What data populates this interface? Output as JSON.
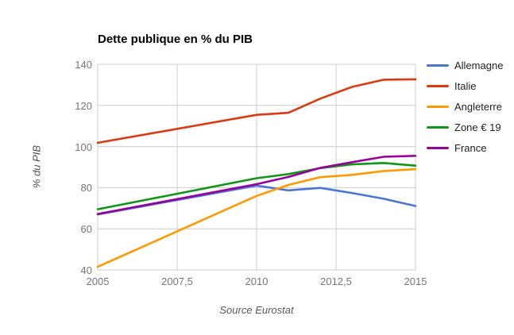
{
  "chart": {
    "title": "Dette publique en % du PIB",
    "y_axis_title": "% du PIB",
    "source": "Source Eurostat"
  },
  "chart_data": {
    "type": "line",
    "title": "Dette publique en % du PIB",
    "xlabel": "",
    "ylabel": "% du PIB",
    "caption": "Source Eurostat",
    "x": [
      2005,
      2010,
      2011,
      2012,
      2013,
      2014,
      2015
    ],
    "series": [
      {
        "name": "Allemagne",
        "color": "#4676d7",
        "values": [
          67.0,
          81.0,
          78.7,
          79.9,
          77.4,
          74.6,
          71.1
        ]
      },
      {
        "name": "Italie",
        "color": "#dc3912",
        "values": [
          101.8,
          115.4,
          116.4,
          123.3,
          129.0,
          132.5,
          132.7
        ]
      },
      {
        "name": "Angleterre",
        "color": "#ff9900",
        "values": [
          41.5,
          76.0,
          81.3,
          85.1,
          86.2,
          88.1,
          89.0
        ]
      },
      {
        "name": "Zone € 19",
        "color": "#109618",
        "values": [
          69.5,
          84.6,
          86.6,
          89.5,
          91.3,
          92.0,
          90.7
        ]
      },
      {
        "name": "France",
        "color": "#990099",
        "values": [
          67.2,
          81.7,
          85.2,
          89.6,
          92.4,
          95.0,
          95.5
        ]
      }
    ],
    "xlim": [
      2005,
      2015
    ],
    "ylim": [
      40,
      140
    ],
    "x_ticks": [
      {
        "value": 2005,
        "label": "2005"
      },
      {
        "value": 2007.5,
        "label": "2007,5"
      },
      {
        "value": 2010,
        "label": "2010"
      },
      {
        "value": 2012.5,
        "label": "2012,5"
      },
      {
        "value": 2015,
        "label": "2015"
      }
    ],
    "y_ticks": [
      {
        "value": 40,
        "label": "40"
      },
      {
        "value": 60,
        "label": "60"
      },
      {
        "value": 80,
        "label": "80"
      },
      {
        "value": 100,
        "label": "100"
      },
      {
        "value": 120,
        "label": "120"
      },
      {
        "value": 140,
        "label": "140"
      }
    ],
    "grid": true,
    "legend_position": "right",
    "colors": {
      "grid": "#cccccc",
      "plot_border": "#cccccc",
      "tick_label": "#757575",
      "title": "#000000",
      "legend_text": "#222222",
      "caption": "#595959",
      "background": "#ffffff"
    }
  }
}
